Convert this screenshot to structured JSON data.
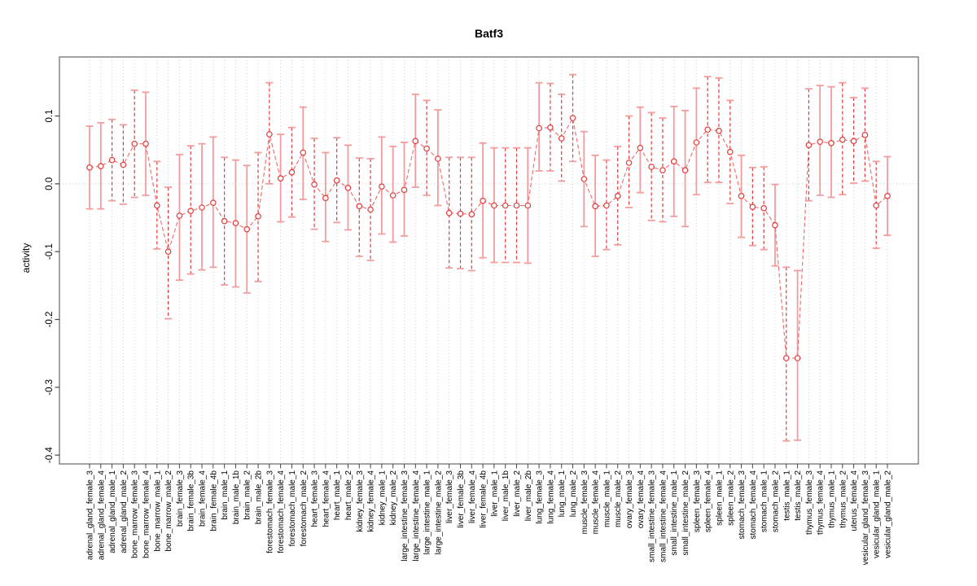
{
  "chart_data": {
    "type": "scatter",
    "title": "Batf3",
    "ylabel": "activity",
    "xlabel": "",
    "ylim": [
      -0.413,
      0.187
    ],
    "yticks": [
      0.1,
      0.0,
      -0.1,
      -0.2,
      -0.3,
      -0.4
    ],
    "grid": "vertical dotted line per category, dotted horizontal line at 0",
    "legend": "none",
    "marker": "open-circle",
    "colors": {
      "point": "#e23b3b",
      "connector": "#ef6a6a",
      "errorbar_solid": "#f49c9c",
      "errorbar_dashed": "#e23b3b",
      "errorbar_cap": "#f49c9c",
      "gridline": "#cfcfcf",
      "axis_box": "#8c8c8c",
      "text": "#000000"
    },
    "categories": [
      "adrenal_gland_female_3",
      "adrenal_gland_female_4",
      "adrenal_gland_male_1",
      "adrenal_gland_male_2",
      "bone_marrow_female_3",
      "bone_marrow_female_4",
      "bone_marrow_male_1",
      "bone_marrow_male_2",
      "brain_female_3",
      "brain_female_3b",
      "brain_female_4",
      "brain_female_4b",
      "brain_male_1",
      "brain_male_1b",
      "brain_male_2",
      "brain_male_2b",
      "forestomach_female_3",
      "forestomach_female_4",
      "forestomach_male_1",
      "forestomach_male_2",
      "heart_female_3",
      "heart_female_4",
      "heart_male_1",
      "heart_male_2",
      "kidney_female_3",
      "kidney_female_4",
      "kidney_male_1",
      "kidney_male_2",
      "large_intestine_female_3",
      "large_intestine_female_4",
      "large_intestine_male_1",
      "large_intestine_male_2",
      "liver_female_3",
      "liver_female_3b",
      "liver_female_4",
      "liver_female_4b",
      "liver_male_1",
      "liver_male_1b",
      "liver_male_2",
      "liver_male_2b",
      "lung_female_3",
      "lung_female_4",
      "lung_male_1",
      "lung_male_2",
      "muscle_female_3",
      "muscle_female_4",
      "muscle_male_1",
      "muscle_male_2",
      "ovary_female_3",
      "ovary_female_4",
      "small_intestine_female_3",
      "small_intestine_female_4",
      "small_intestine_male_1",
      "small_intestine_male_2",
      "spleen_female_3",
      "spleen_female_4",
      "spleen_male_1",
      "spleen_male_2",
      "stomach_female_3",
      "stomach_female_4",
      "stomach_male_1",
      "stomach_male_2",
      "testis_male_1",
      "testis_male_2",
      "thymus_female_3",
      "thymus_female_4",
      "thymus_male_1",
      "thymus_male_2",
      "uterus_female_4",
      "vesicular_gland_female_3",
      "vesicular_gland_male_1",
      "vesicular_gland_male_2"
    ],
    "series": [
      {
        "name": "activity",
        "points": [
          {
            "label": "adrenal_gland_female_3",
            "v": 0.024,
            "lo": -0.037,
            "hi": 0.085,
            "s": "solid"
          },
          {
            "label": "adrenal_gland_female_4",
            "v": 0.026,
            "lo": -0.037,
            "hi": 0.09,
            "s": "solid"
          },
          {
            "label": "adrenal_gland_male_1",
            "v": 0.035,
            "lo": -0.025,
            "hi": 0.095,
            "s": "dashed"
          },
          {
            "label": "adrenal_gland_male_2",
            "v": 0.028,
            "lo": -0.03,
            "hi": 0.087,
            "s": "dashed"
          },
          {
            "label": "bone_marrow_female_3",
            "v": 0.059,
            "lo": -0.02,
            "hi": 0.138,
            "s": "dashed"
          },
          {
            "label": "bone_marrow_female_4",
            "v": 0.059,
            "lo": -0.017,
            "hi": 0.135,
            "s": "solid"
          },
          {
            "label": "bone_marrow_male_1",
            "v": -0.032,
            "lo": -0.096,
            "hi": 0.033,
            "s": "dashed"
          },
          {
            "label": "bone_marrow_male_2",
            "v": -0.1,
            "lo": -0.199,
            "hi": -0.005,
            "s": "dashed"
          },
          {
            "label": "brain_female_3",
            "v": -0.047,
            "lo": -0.142,
            "hi": 0.043,
            "s": "solid"
          },
          {
            "label": "brain_female_3b",
            "v": -0.04,
            "lo": -0.133,
            "hi": 0.056,
            "s": "dashed"
          },
          {
            "label": "brain_female_4",
            "v": -0.035,
            "lo": -0.127,
            "hi": 0.059,
            "s": "solid"
          },
          {
            "label": "brain_female_4b",
            "v": -0.028,
            "lo": -0.123,
            "hi": 0.069,
            "s": "solid"
          },
          {
            "label": "brain_male_1",
            "v": -0.055,
            "lo": -0.149,
            "hi": 0.039,
            "s": "dashed"
          },
          {
            "label": "brain_male_1b",
            "v": -0.058,
            "lo": -0.152,
            "hi": 0.035,
            "s": "solid"
          },
          {
            "label": "brain_male_2",
            "v": -0.067,
            "lo": -0.161,
            "hi": 0.027,
            "s": "solid"
          },
          {
            "label": "brain_male_2b",
            "v": -0.048,
            "lo": -0.144,
            "hi": 0.046,
            "s": "dashed"
          },
          {
            "label": "forestomach_female_3",
            "v": 0.073,
            "lo": 0.0,
            "hi": 0.149,
            "s": "dashed"
          },
          {
            "label": "forestomach_female_4",
            "v": 0.008,
            "lo": -0.056,
            "hi": 0.073,
            "s": "solid"
          },
          {
            "label": "forestomach_male_1",
            "v": 0.017,
            "lo": -0.049,
            "hi": 0.083,
            "s": "dashed"
          },
          {
            "label": "forestomach_male_2",
            "v": 0.046,
            "lo": -0.023,
            "hi": 0.113,
            "s": "solid"
          },
          {
            "label": "heart_female_3",
            "v": -0.001,
            "lo": -0.067,
            "hi": 0.067,
            "s": "dashed"
          },
          {
            "label": "heart_female_4",
            "v": -0.021,
            "lo": -0.085,
            "hi": 0.046,
            "s": "solid"
          },
          {
            "label": "heart_male_1",
            "v": 0.005,
            "lo": -0.057,
            "hi": 0.068,
            "s": "dashed"
          },
          {
            "label": "heart_male_2",
            "v": -0.006,
            "lo": -0.068,
            "hi": 0.057,
            "s": "solid"
          },
          {
            "label": "kidney_female_3",
            "v": -0.033,
            "lo": -0.107,
            "hi": 0.038,
            "s": "dashed"
          },
          {
            "label": "kidney_female_4",
            "v": -0.038,
            "lo": -0.113,
            "hi": 0.037,
            "s": "dashed"
          },
          {
            "label": "kidney_male_1",
            "v": -0.004,
            "lo": -0.074,
            "hi": 0.069,
            "s": "solid"
          },
          {
            "label": "kidney_male_2",
            "v": -0.017,
            "lo": -0.086,
            "hi": 0.055,
            "s": "solid"
          },
          {
            "label": "large_intestine_female_3",
            "v": -0.009,
            "lo": -0.077,
            "hi": 0.061,
            "s": "solid"
          },
          {
            "label": "large_intestine_female_4",
            "v": 0.063,
            "lo": -0.005,
            "hi": 0.132,
            "s": "solid"
          },
          {
            "label": "large_intestine_male_1",
            "v": 0.052,
            "lo": -0.017,
            "hi": 0.123,
            "s": "dashed"
          },
          {
            "label": "large_intestine_male_2",
            "v": 0.037,
            "lo": -0.032,
            "hi": 0.109,
            "s": "solid"
          },
          {
            "label": "liver_female_3",
            "v": -0.043,
            "lo": -0.124,
            "hi": 0.039,
            "s": "dashed"
          },
          {
            "label": "liver_female_3b",
            "v": -0.044,
            "lo": -0.125,
            "hi": 0.039,
            "s": "dashed"
          },
          {
            "label": "liver_female_4",
            "v": -0.045,
            "lo": -0.128,
            "hi": 0.039,
            "s": "dashed"
          },
          {
            "label": "liver_female_4b",
            "v": -0.025,
            "lo": -0.109,
            "hi": 0.06,
            "s": "solid"
          },
          {
            "label": "liver_male_1",
            "v": -0.032,
            "lo": -0.116,
            "hi": 0.053,
            "s": "solid"
          },
          {
            "label": "liver_male_1b",
            "v": -0.032,
            "lo": -0.116,
            "hi": 0.053,
            "s": "dashed"
          },
          {
            "label": "liver_male_2",
            "v": -0.032,
            "lo": -0.116,
            "hi": 0.053,
            "s": "dashed"
          },
          {
            "label": "liver_male_2b",
            "v": -0.032,
            "lo": -0.117,
            "hi": 0.053,
            "s": "solid"
          },
          {
            "label": "lung_female_3",
            "v": 0.082,
            "lo": 0.019,
            "hi": 0.149,
            "s": "solid"
          },
          {
            "label": "lung_female_4",
            "v": 0.083,
            "lo": 0.019,
            "hi": 0.148,
            "s": "dashed"
          },
          {
            "label": "lung_male_1",
            "v": 0.067,
            "lo": 0.004,
            "hi": 0.132,
            "s": "dashed"
          },
          {
            "label": "lung_male_2",
            "v": 0.097,
            "lo": 0.033,
            "hi": 0.161,
            "s": "dashed"
          },
          {
            "label": "muscle_female_3",
            "v": 0.007,
            "lo": -0.063,
            "hi": 0.077,
            "s": "solid"
          },
          {
            "label": "muscle_female_4",
            "v": -0.033,
            "lo": -0.107,
            "hi": 0.042,
            "s": "solid"
          },
          {
            "label": "muscle_male_1",
            "v": -0.032,
            "lo": -0.097,
            "hi": 0.035,
            "s": "dashed"
          },
          {
            "label": "muscle_male_2",
            "v": -0.018,
            "lo": -0.09,
            "hi": 0.055,
            "s": "dashed"
          },
          {
            "label": "ovary_female_3",
            "v": 0.031,
            "lo": -0.035,
            "hi": 0.1,
            "s": "dashed"
          },
          {
            "label": "ovary_female_4",
            "v": 0.053,
            "lo": -0.013,
            "hi": 0.113,
            "s": "solid"
          },
          {
            "label": "small_intestine_female_3",
            "v": 0.025,
            "lo": -0.054,
            "hi": 0.105,
            "s": "dashed"
          },
          {
            "label": "small_intestine_female_4",
            "v": 0.02,
            "lo": -0.056,
            "hi": 0.097,
            "s": "dashed"
          },
          {
            "label": "small_intestine_male_1",
            "v": 0.033,
            "lo": -0.048,
            "hi": 0.114,
            "s": "solid"
          },
          {
            "label": "small_intestine_male_2",
            "v": 0.02,
            "lo": -0.063,
            "hi": 0.108,
            "s": "solid"
          },
          {
            "label": "spleen_female_3",
            "v": 0.061,
            "lo": -0.016,
            "hi": 0.141,
            "s": "solid"
          },
          {
            "label": "spleen_female_4",
            "v": 0.08,
            "lo": 0.002,
            "hi": 0.158,
            "s": "dashed"
          },
          {
            "label": "spleen_male_1",
            "v": 0.078,
            "lo": 0.002,
            "hi": 0.156,
            "s": "dashed"
          },
          {
            "label": "spleen_male_2",
            "v": 0.047,
            "lo": -0.029,
            "hi": 0.123,
            "s": "dashed"
          },
          {
            "label": "stomach_female_3",
            "v": -0.018,
            "lo": -0.079,
            "hi": 0.042,
            "s": "solid"
          },
          {
            "label": "stomach_female_4",
            "v": -0.034,
            "lo": -0.091,
            "hi": 0.024,
            "s": "dashed"
          },
          {
            "label": "stomach_male_1",
            "v": -0.036,
            "lo": -0.097,
            "hi": 0.025,
            "s": "dashed"
          },
          {
            "label": "stomach_male_2",
            "v": -0.061,
            "lo": -0.121,
            "hi": -0.001,
            "s": "solid"
          },
          {
            "label": "testis_male_1",
            "v": -0.257,
            "lo": -0.379,
            "hi": -0.123,
            "s": "dashed"
          },
          {
            "label": "testis_male_2",
            "v": -0.257,
            "lo": -0.378,
            "hi": -0.128,
            "s": "solid"
          },
          {
            "label": "thymus_female_3",
            "v": 0.057,
            "lo": -0.025,
            "hi": 0.14,
            "s": "dashed"
          },
          {
            "label": "thymus_female_4",
            "v": 0.062,
            "lo": -0.017,
            "hi": 0.145,
            "s": "solid"
          },
          {
            "label": "thymus_male_1",
            "v": 0.06,
            "lo": -0.02,
            "hi": 0.143,
            "s": "solid"
          },
          {
            "label": "thymus_male_2",
            "v": 0.065,
            "lo": -0.016,
            "hi": 0.149,
            "s": "dashed"
          },
          {
            "label": "uterus_female_4",
            "v": 0.063,
            "lo": 0.001,
            "hi": 0.127,
            "s": "dashed"
          },
          {
            "label": "vesicular_gland_female_3",
            "v": 0.072,
            "lo": 0.004,
            "hi": 0.141,
            "s": "dashed"
          },
          {
            "label": "vesicular_gland_male_1",
            "v": -0.032,
            "lo": -0.095,
            "hi": 0.033,
            "s": "dashed"
          },
          {
            "label": "vesicular_gland_male_2",
            "v": -0.018,
            "lo": -0.076,
            "hi": 0.04,
            "s": "solid"
          }
        ]
      }
    ]
  }
}
